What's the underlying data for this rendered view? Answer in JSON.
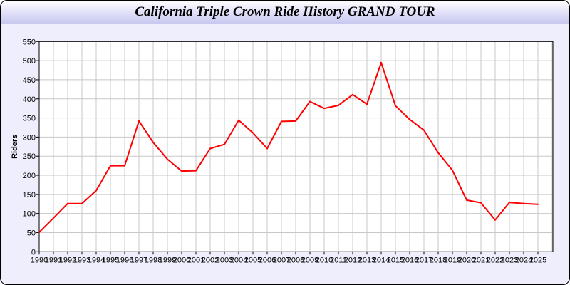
{
  "chart_data": {
    "type": "line",
    "title": "California Triple Crown Ride History GRAND TOUR",
    "xlabel": "",
    "ylabel": "Riders",
    "ylim": [
      0,
      550
    ],
    "yticks": [
      0,
      50,
      100,
      150,
      200,
      250,
      300,
      350,
      400,
      450,
      500,
      550
    ],
    "grid": true,
    "x": [
      1990,
      1991,
      1992,
      1993,
      1994,
      1995,
      1996,
      1997,
      1998,
      1999,
      2000,
      2001,
      2002,
      2003,
      2004,
      2005,
      2006,
      2007,
      2008,
      2009,
      2010,
      2011,
      2012,
      2013,
      2014,
      2015,
      2016,
      2017,
      2018,
      2019,
      2020,
      2021,
      2022,
      2023,
      2024,
      2025
    ],
    "series": [
      {
        "values": [
          51,
          88,
          126,
          126,
          160,
          225,
          225,
          342,
          286,
          242,
          211,
          212,
          270,
          281,
          344,
          311,
          270,
          341,
          342,
          393,
          375,
          383,
          411,
          386,
          495,
          382,
          346,
          318,
          259,
          213,
          135,
          128,
          83,
          129,
          126,
          124
        ],
        "color": "#ff0000"
      }
    ]
  }
}
